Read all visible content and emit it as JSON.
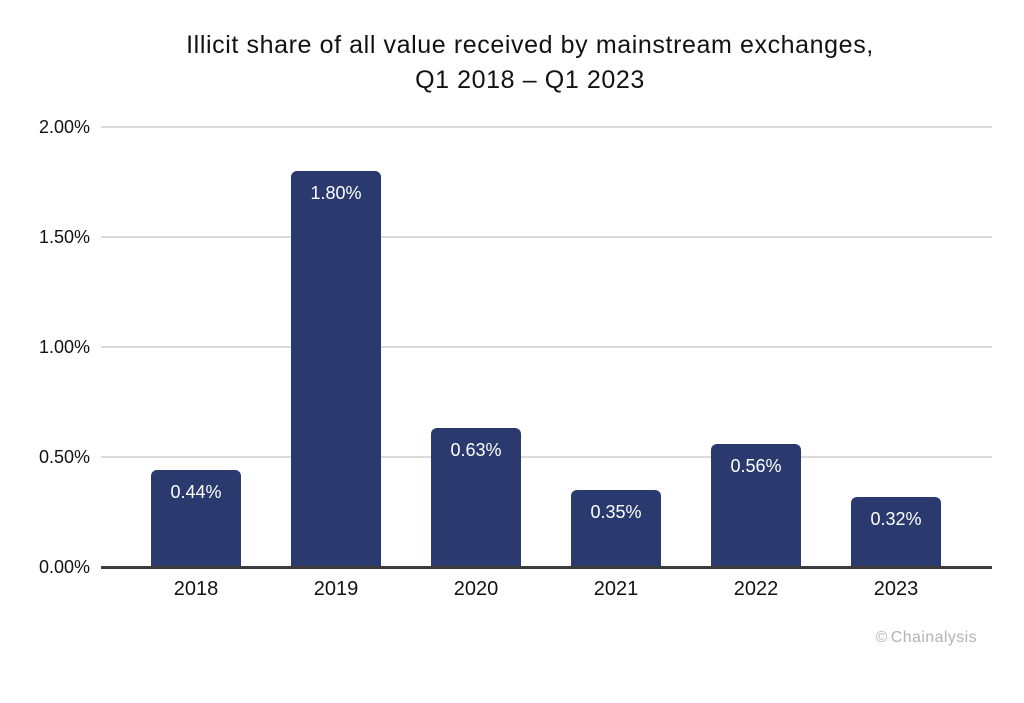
{
  "title": {
    "line1": "Illicit share of all value received by mainstream exchanges,",
    "line2": "Q1 2018 – Q1 2023"
  },
  "watermark": {
    "symbol": "©",
    "text": "Chainalysis"
  },
  "colors": {
    "background": "#ffffff",
    "bar": "#2b3a6e",
    "gridline": "#d9d9d9",
    "axis": "#3d3d3d",
    "title_text": "#121212",
    "tick_text": "#121212",
    "bar_label_text": "#ffffff",
    "watermark_text": "#b3b3b3"
  },
  "chart_data": {
    "type": "bar",
    "title": "Illicit share of all value received by mainstream exchanges, Q1 2018 – Q1 2023",
    "categories": [
      "2018",
      "2019",
      "2020",
      "2021",
      "2022",
      "2023"
    ],
    "values": [
      0.44,
      1.8,
      0.63,
      0.35,
      0.56,
      0.32
    ],
    "value_labels": [
      "0.44%",
      "1.80%",
      "0.63%",
      "0.35%",
      "0.56%",
      "0.32%"
    ],
    "xlabel": "",
    "ylabel": "",
    "ylim": [
      0,
      2.0
    ],
    "yticks": [
      0.0,
      0.5,
      1.0,
      1.5,
      2.0
    ],
    "ytick_labels": [
      "0.00%",
      "0.50%",
      "1.00%",
      "1.50%",
      "2.00%"
    ],
    "grid": true,
    "legend": false,
    "bar_label_position": "inside-top"
  }
}
